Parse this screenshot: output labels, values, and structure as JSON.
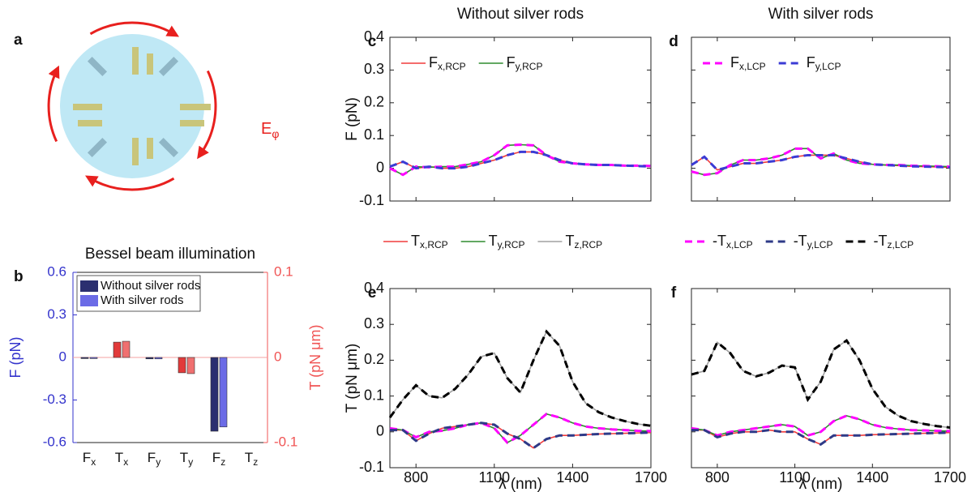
{
  "diagram": {
    "label": "a",
    "field": "E",
    "field_subscript": "φ"
  },
  "chart_data": [
    {
      "type": "bar",
      "panel_label": "b",
      "title": "Bessel beam illumination",
      "categories": [
        {
          "symbol": "F",
          "sub": "x"
        },
        {
          "symbol": "T",
          "sub": "x"
        },
        {
          "symbol": "F",
          "sub": "y"
        },
        {
          "symbol": "T",
          "sub": "y"
        },
        {
          "symbol": "F",
          "sub": "z"
        },
        {
          "symbol": "T",
          "sub": "z"
        }
      ],
      "ylabel": "F (pN)",
      "y2label": "T (pN μm)",
      "ycolor": "#3333cc",
      "y2color": "#f05555",
      "ylim": [
        -0.6,
        0.6
      ],
      "yticks": [
        -0.6,
        -0.3,
        0,
        0.3,
        0.6
      ],
      "y2lim": [
        -0.1,
        0.1
      ],
      "y2ticks": [
        -0.1,
        0,
        0.1
      ],
      "legend": "upper left",
      "series": [
        {
          "name": "Without silver rods",
          "color": "#2b2f70",
          "values": [
            -0.008,
            null,
            -0.01,
            null,
            -0.52,
            null
          ]
        },
        {
          "name": "With silver rods",
          "color": "#6b6be6",
          "values": [
            -0.008,
            null,
            -0.01,
            null,
            -0.49,
            null
          ]
        },
        {
          "color": "#e23a3a",
          "axis": "y2",
          "values": [
            null,
            0.018,
            null,
            -0.018,
            null,
            0
          ]
        },
        {
          "color": "#f07070",
          "axis": "y2",
          "values": [
            null,
            0.019,
            null,
            -0.019,
            null,
            0
          ]
        }
      ]
    },
    {
      "type": "line",
      "panel_label": "c",
      "title": "Without silver rods",
      "ylabel": "F (pN)",
      "xlim": [
        700,
        1700
      ],
      "xticks": [
        800,
        1100,
        1400,
        1700
      ],
      "ylim": [
        -0.1,
        0.4
      ],
      "yticks": [
        -0.1,
        0,
        0.1,
        0.2,
        0.3,
        0.4
      ],
      "show_xticklabels": false,
      "show_yticklabels": true,
      "legend": "upper left",
      "x": [
        700,
        750,
        800,
        850,
        900,
        950,
        1000,
        1050,
        1100,
        1150,
        1200,
        1250,
        1300,
        1350,
        1400,
        1450,
        1500,
        1550,
        1600,
        1650,
        1700
      ],
      "series": [
        {
          "name": "F",
          "subscript": "x,RCP",
          "color": "#f03c3c",
          "dashed": false,
          "values": [
            0.005,
            0.02,
            0.0,
            0.005,
            0.0,
            0.0,
            0.005,
            0.015,
            0.025,
            0.04,
            0.05,
            0.05,
            0.04,
            0.025,
            0.015,
            0.012,
            0.01,
            0.01,
            0.008,
            0.007,
            0.005
          ]
        },
        {
          "name": "F",
          "subscript": "y,RCP",
          "color": "#2e8b2e",
          "dashed": false,
          "values": [
            0.0,
            -0.02,
            0.005,
            0.003,
            0.005,
            0.005,
            0.012,
            0.02,
            0.04,
            0.07,
            0.072,
            0.07,
            0.04,
            0.02,
            0.015,
            0.012,
            0.01,
            0.01,
            0.008,
            0.008,
            0.007
          ]
        },
        {
          "color": "#ff00ff",
          "dashed": true,
          "values": [
            0.0,
            -0.02,
            0.005,
            0.003,
            0.005,
            0.005,
            0.012,
            0.02,
            0.04,
            0.07,
            0.072,
            0.07,
            0.04,
            0.02,
            0.015,
            0.012,
            0.01,
            0.01,
            0.008,
            0.008,
            0.007
          ]
        },
        {
          "color": "#3b3bd4",
          "dashed": true,
          "values": [
            0.005,
            0.02,
            0.0,
            0.005,
            0.0,
            0.0,
            0.005,
            0.015,
            0.025,
            0.04,
            0.05,
            0.05,
            0.04,
            0.025,
            0.015,
            0.012,
            0.01,
            0.01,
            0.008,
            0.007,
            0.005
          ]
        }
      ]
    },
    {
      "type": "line",
      "panel_label": "d",
      "title": "With silver rods",
      "xlim": [
        700,
        1700
      ],
      "xticks": [
        800,
        1100,
        1400,
        1700
      ],
      "ylim": [
        -0.1,
        0.4
      ],
      "yticks": [
        -0.1,
        0,
        0.1,
        0.2,
        0.3,
        0.4
      ],
      "show_xticklabels": false,
      "show_yticklabels": false,
      "legend": "upper left",
      "x": [
        700,
        750,
        800,
        850,
        900,
        950,
        1000,
        1050,
        1100,
        1150,
        1200,
        1250,
        1300,
        1350,
        1400,
        1450,
        1500,
        1550,
        1600,
        1650,
        1700
      ],
      "series": [
        {
          "color": "#f03c3c",
          "dashed": false,
          "values": [
            0.01,
            0.035,
            -0.005,
            0.005,
            0.015,
            0.015,
            0.02,
            0.025,
            0.035,
            0.04,
            0.04,
            0.04,
            0.03,
            0.02,
            0.012,
            0.01,
            0.008,
            0.006,
            0.005,
            0.004,
            0.003
          ]
        },
        {
          "color": "#2e8b2e",
          "dashed": false,
          "values": [
            -0.01,
            -0.02,
            -0.015,
            0.01,
            0.025,
            0.025,
            0.03,
            0.04,
            0.06,
            0.06,
            0.03,
            0.045,
            0.025,
            0.015,
            0.012,
            0.01,
            0.01,
            0.008,
            0.007,
            0.006,
            0.005
          ]
        },
        {
          "name": "F",
          "subscript": "x,LCP",
          "color": "#ff00ff",
          "dashed": true,
          "values": [
            -0.01,
            -0.02,
            -0.015,
            0.01,
            0.025,
            0.025,
            0.03,
            0.04,
            0.06,
            0.06,
            0.03,
            0.045,
            0.025,
            0.015,
            0.012,
            0.01,
            0.01,
            0.008,
            0.007,
            0.006,
            0.005
          ]
        },
        {
          "name": "F",
          "subscript": "y,LCP",
          "color": "#3b3bd4",
          "dashed": true,
          "values": [
            0.01,
            0.035,
            -0.005,
            0.005,
            0.015,
            0.015,
            0.02,
            0.025,
            0.035,
            0.04,
            0.04,
            0.04,
            0.03,
            0.02,
            0.012,
            0.01,
            0.008,
            0.006,
            0.005,
            0.004,
            0.003
          ]
        }
      ]
    },
    {
      "type": "line",
      "panel_label": "e",
      "ylabel": "T (pN μm)",
      "xlabel": "λ (nm)",
      "xlim": [
        700,
        1700
      ],
      "xticks": [
        800,
        1100,
        1400,
        1700
      ],
      "ylim": [
        -0.1,
        0.4
      ],
      "yticks": [
        -0.1,
        0,
        0.1,
        0.2,
        0.3,
        0.4
      ],
      "show_xticklabels": true,
      "show_yticklabels": true,
      "legend": "above",
      "x": [
        700,
        750,
        800,
        850,
        900,
        950,
        1000,
        1050,
        1100,
        1150,
        1200,
        1250,
        1300,
        1350,
        1400,
        1450,
        1500,
        1550,
        1600,
        1650,
        1700
      ],
      "series": [
        {
          "name": "T",
          "subscript": "x,RCP",
          "color": "#f03c3c",
          "dashed": false,
          "values": [
            0.005,
            0.005,
            -0.025,
            -0.005,
            0.01,
            0.015,
            0.02,
            0.025,
            0.02,
            -0.005,
            -0.02,
            -0.045,
            -0.02,
            -0.01,
            -0.01,
            -0.008,
            -0.006,
            -0.005,
            -0.004,
            -0.003,
            -0.002
          ]
        },
        {
          "name": "T",
          "subscript": "y,RCP",
          "color": "#2e8b2e",
          "dashed": false,
          "values": [
            0.01,
            0.005,
            -0.015,
            0.0,
            0.003,
            0.01,
            0.02,
            0.025,
            0.01,
            -0.03,
            -0.01,
            0.02,
            0.05,
            0.04,
            0.025,
            0.015,
            0.01,
            0.007,
            0.005,
            0.003,
            0.002
          ]
        },
        {
          "name": "T",
          "subscript": "z,RCP",
          "color": "#a0a0a0",
          "dashed": false,
          "values": [
            0.04,
            0.09,
            0.13,
            0.1,
            0.095,
            0.12,
            0.16,
            0.21,
            0.22,
            0.15,
            0.11,
            0.2,
            0.28,
            0.24,
            0.14,
            0.08,
            0.055,
            0.04,
            0.03,
            0.022,
            0.017
          ]
        },
        {
          "color": "#ff00ff",
          "dashed": true,
          "values": [
            0.01,
            0.005,
            -0.015,
            0.0,
            0.003,
            0.01,
            0.02,
            0.025,
            0.01,
            -0.03,
            -0.01,
            0.02,
            0.05,
            0.04,
            0.025,
            0.015,
            0.01,
            0.007,
            0.005,
            0.003,
            0.002
          ]
        },
        {
          "color": "#2e3a87",
          "dashed": true,
          "values": [
            0.005,
            0.005,
            -0.025,
            -0.005,
            0.01,
            0.015,
            0.02,
            0.025,
            0.02,
            -0.005,
            -0.02,
            -0.045,
            -0.02,
            -0.01,
            -0.01,
            -0.008,
            -0.006,
            -0.005,
            -0.004,
            -0.003,
            -0.002
          ]
        },
        {
          "color": "#000000",
          "dashed": true,
          "values": [
            0.04,
            0.09,
            0.13,
            0.1,
            0.095,
            0.12,
            0.16,
            0.21,
            0.22,
            0.15,
            0.11,
            0.2,
            0.28,
            0.24,
            0.14,
            0.08,
            0.055,
            0.04,
            0.03,
            0.022,
            0.017
          ]
        }
      ]
    },
    {
      "type": "line",
      "panel_label": "f",
      "xlabel": "λ (nm)",
      "xlim": [
        700,
        1700
      ],
      "xticks": [
        800,
        1100,
        1400,
        1700
      ],
      "ylim": [
        -0.1,
        0.4
      ],
      "yticks": [
        -0.1,
        0,
        0.1,
        0.2,
        0.3,
        0.4
      ],
      "show_xticklabels": true,
      "show_yticklabels": false,
      "legend": "above",
      "x": [
        700,
        750,
        800,
        850,
        900,
        950,
        1000,
        1050,
        1100,
        1150,
        1200,
        1250,
        1300,
        1350,
        1400,
        1450,
        1500,
        1550,
        1600,
        1650,
        1700
      ],
      "series": [
        {
          "color": "#f03c3c",
          "dashed": false,
          "values": [
            0.005,
            0.005,
            -0.015,
            -0.005,
            0.0,
            0.0,
            0.005,
            0.0,
            0.0,
            -0.02,
            -0.035,
            -0.01,
            -0.01,
            -0.01,
            -0.008,
            -0.007,
            -0.006,
            -0.005,
            -0.004,
            -0.003,
            -0.002
          ]
        },
        {
          "color": "#2e8b2e",
          "dashed": false,
          "values": [
            0.01,
            0.005,
            -0.01,
            0.0,
            0.005,
            0.01,
            0.015,
            0.02,
            0.015,
            -0.01,
            0.0,
            0.03,
            0.045,
            0.035,
            0.02,
            0.012,
            0.008,
            0.005,
            0.004,
            0.003,
            0.002
          ]
        },
        {
          "color": "#a0a0a0",
          "dashed": false,
          "values": [
            0.16,
            0.17,
            0.25,
            0.22,
            0.17,
            0.155,
            0.165,
            0.185,
            0.18,
            0.09,
            0.14,
            0.23,
            0.255,
            0.2,
            0.12,
            0.07,
            0.045,
            0.03,
            0.022,
            0.016,
            0.012
          ]
        },
        {
          "name": "-T",
          "subscript": "x,LCP",
          "color": "#ff00ff",
          "dashed": true,
          "values": [
            0.01,
            0.005,
            -0.01,
            0.0,
            0.005,
            0.01,
            0.015,
            0.02,
            0.015,
            -0.01,
            0.0,
            0.03,
            0.045,
            0.035,
            0.02,
            0.012,
            0.008,
            0.005,
            0.004,
            0.003,
            0.002
          ]
        },
        {
          "name": "-T",
          "subscript": "y,LCP",
          "color": "#2e3a87",
          "dashed": true,
          "values": [
            0.005,
            0.005,
            -0.015,
            -0.005,
            0.0,
            0.0,
            0.005,
            0.0,
            0.0,
            -0.02,
            -0.035,
            -0.01,
            -0.01,
            -0.01,
            -0.008,
            -0.007,
            -0.006,
            -0.005,
            -0.004,
            -0.003,
            -0.002
          ]
        },
        {
          "name": "-T",
          "subscript": "z,LCP",
          "color": "#000000",
          "dashed": true,
          "values": [
            0.16,
            0.17,
            0.25,
            0.22,
            0.17,
            0.155,
            0.165,
            0.185,
            0.18,
            0.09,
            0.14,
            0.23,
            0.255,
            0.2,
            0.12,
            0.07,
            0.045,
            0.03,
            0.022,
            0.016,
            0.012
          ]
        }
      ]
    }
  ]
}
